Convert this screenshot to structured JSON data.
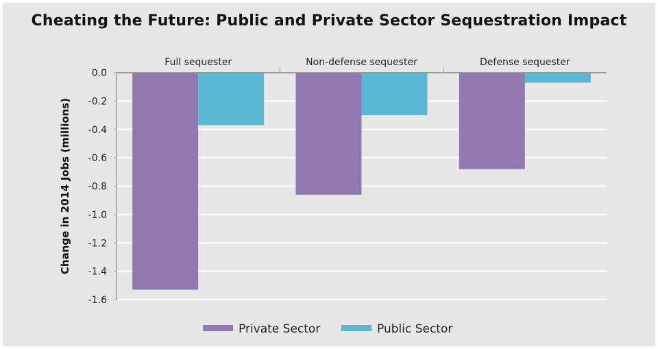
{
  "chart_data": {
    "type": "bar",
    "title": "Cheating the Future: Public and Private Sector Sequestration Impact",
    "categories": [
      "Full sequester",
      "Non-defense sequester",
      "Defense sequester"
    ],
    "series": [
      {
        "name": "Private Sector",
        "color": "#9179b0",
        "values": [
          -1.53,
          -0.86,
          -0.68
        ]
      },
      {
        "name": "Public Sector",
        "color": "#5bb8d2",
        "values": [
          -0.37,
          -0.3,
          -0.07
        ]
      }
    ],
    "xlabel": "",
    "ylabel": "Change in 2014 Jobs (millions)",
    "ylim": [
      -1.6,
      0.0
    ],
    "yticks": [
      "0.0",
      "-0.2",
      "-0.4",
      "-0.6",
      "-0.8",
      "-1.0",
      "-1.2",
      "-1.4",
      "-1.6"
    ],
    "category_labels_position": "top",
    "grid": true,
    "legend": "bottom"
  }
}
